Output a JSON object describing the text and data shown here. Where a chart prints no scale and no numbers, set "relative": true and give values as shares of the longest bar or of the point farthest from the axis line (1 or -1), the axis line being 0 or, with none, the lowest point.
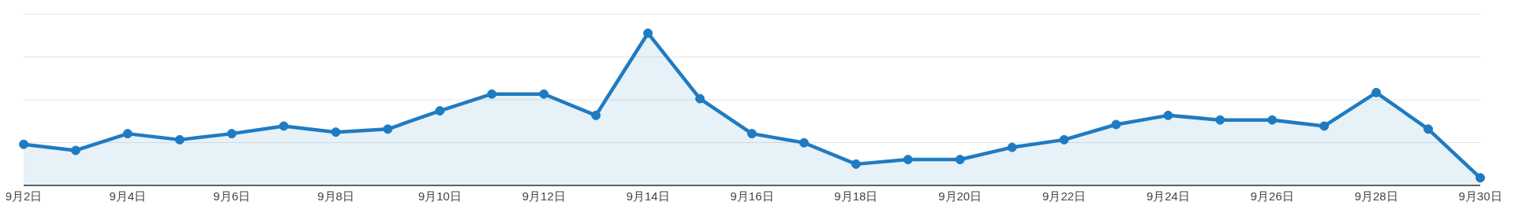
{
  "chart_data": {
    "type": "area",
    "relative": true,
    "grid": "y",
    "marker": "circle",
    "line_style": "solid",
    "categories": [
      "9月2日",
      null,
      "9月4日",
      null,
      "9月6日",
      null,
      "9月8日",
      null,
      "9月10日",
      null,
      "9月12日",
      null,
      "9月14日",
      null,
      "9月16日",
      null,
      "9月18日",
      null,
      "9月20日",
      null,
      "9月22日",
      null,
      "9月24日",
      null,
      "9月26日",
      null,
      "9月28日",
      null,
      "9月30日"
    ],
    "series": [
      {
        "color": "#1f7bc1",
        "values": [
          0.27,
          0.23,
          0.34,
          0.3,
          0.34,
          0.39,
          0.35,
          0.37,
          0.49,
          0.6,
          0.6,
          0.46,
          1,
          0.57,
          0.34,
          0.28,
          0.14,
          0.17,
          0.17,
          0.25,
          0.3,
          0.4,
          0.46,
          0.43,
          0.43,
          0.39,
          0.61,
          0.37,
          0.05
        ]
      }
    ]
  }
}
